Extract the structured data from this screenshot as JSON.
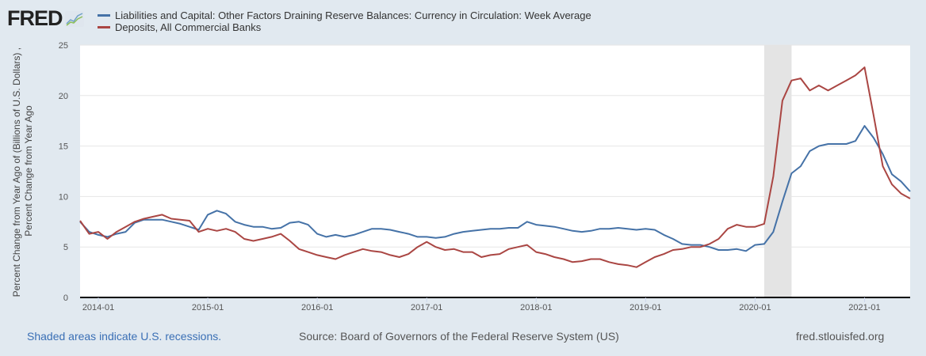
{
  "header": {
    "logo": "FRED"
  },
  "footer": {
    "recession_note": "Shaded areas indicate U.S. recessions.",
    "source": "Source: Board of Governors of the Federal Reserve System (US)",
    "site": "fred.stlouisfed.org"
  },
  "chart_data": {
    "type": "line",
    "title": "",
    "xlabel": "",
    "ylabel_line1": "Percent Change from Year Ago of (Billions of U.S. Dollars) ,",
    "ylabel_line2": "Percent Change from Year Ago",
    "ylim": [
      0,
      25
    ],
    "yticks": [
      "0",
      "5",
      "10",
      "15",
      "20",
      "25"
    ],
    "xticks": [
      "2014-01",
      "2015-01",
      "2016-01",
      "2017-01",
      "2018-01",
      "2019-01",
      "2020-01",
      "2021-01"
    ],
    "x_start": "2013-11",
    "x_end": "2021-06",
    "grid": true,
    "legend_position": "top-left",
    "recessions": [
      {
        "start": "2020-02",
        "end": "2020-04"
      }
    ],
    "series": [
      {
        "name": "Liabilities and Capital: Other Factors Draining Reserve Balances: Currency in Circulation: Week Average",
        "color": "#4572a7",
        "start": "2013-11",
        "values": [
          7.5,
          6.5,
          6.2,
          6.0,
          6.3,
          6.5,
          7.4,
          7.7,
          7.7,
          7.7,
          7.5,
          7.3,
          7.0,
          6.7,
          8.2,
          8.6,
          8.3,
          7.5,
          7.2,
          7.0,
          7.0,
          6.8,
          6.9,
          7.4,
          7.5,
          7.2,
          6.3,
          6.0,
          6.2,
          6.0,
          6.2,
          6.5,
          6.8,
          6.8,
          6.7,
          6.5,
          6.3,
          6.0,
          6.0,
          5.9,
          6.0,
          6.3,
          6.5,
          6.6,
          6.7,
          6.8,
          6.8,
          6.9,
          6.9,
          7.5,
          7.2,
          7.1,
          7.0,
          6.8,
          6.6,
          6.5,
          6.6,
          6.8,
          6.8,
          6.9,
          6.8,
          6.7,
          6.8,
          6.7,
          6.2,
          5.8,
          5.3,
          5.2,
          5.2,
          5.0,
          4.7,
          4.7,
          4.8,
          4.6,
          5.2,
          5.3,
          6.5,
          9.5,
          12.3,
          13.0,
          14.5,
          15.0,
          15.2,
          15.2,
          15.2,
          15.5,
          17.0,
          15.8,
          14.2,
          12.2,
          11.5,
          10.5
        ]
      },
      {
        "name": "Deposits, All Commercial Banks",
        "color": "#aa4643",
        "start": "2013-11",
        "values": [
          7.6,
          6.3,
          6.5,
          5.8,
          6.5,
          7.0,
          7.5,
          7.8,
          8.0,
          8.2,
          7.8,
          7.7,
          7.6,
          6.5,
          6.8,
          6.6,
          6.8,
          6.5,
          5.8,
          5.6,
          5.8,
          6.0,
          6.3,
          5.6,
          4.8,
          4.5,
          4.2,
          4.0,
          3.8,
          4.2,
          4.5,
          4.8,
          4.6,
          4.5,
          4.2,
          4.0,
          4.3,
          5.0,
          5.5,
          5.0,
          4.7,
          4.8,
          4.5,
          4.5,
          4.0,
          4.2,
          4.3,
          4.8,
          5.0,
          5.2,
          4.5,
          4.3,
          4.0,
          3.8,
          3.5,
          3.6,
          3.8,
          3.8,
          3.5,
          3.3,
          3.2,
          3.0,
          3.5,
          4.0,
          4.3,
          4.7,
          4.8,
          5.0,
          5.0,
          5.3,
          5.8,
          6.8,
          7.2,
          7.0,
          7.0,
          7.3,
          12.0,
          19.5,
          21.5,
          21.7,
          20.5,
          21.0,
          20.5,
          21.0,
          21.5,
          22.0,
          22.8,
          18.0,
          13.0,
          11.2,
          10.3,
          9.8
        ]
      }
    ]
  }
}
